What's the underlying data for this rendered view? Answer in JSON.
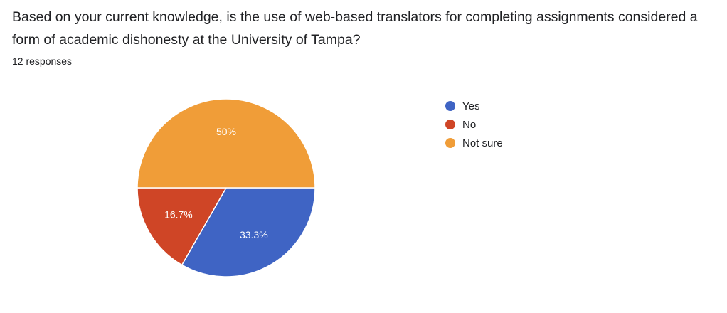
{
  "question": {
    "title": "Based on your current knowledge, is the use of web-based translators for completing assignments considered a form of academic dishonesty at the University of Tampa?",
    "response_count": "12 responses"
  },
  "chart_data": {
    "type": "pie",
    "categories": [
      "Yes",
      "No",
      "Not sure"
    ],
    "values": [
      33.3,
      16.7,
      50
    ],
    "labels": [
      "33.3%",
      "16.7%",
      "50%"
    ],
    "colors": [
      "#3f64c4",
      "#cf4526",
      "#f09d38"
    ],
    "legend_position": "right"
  }
}
